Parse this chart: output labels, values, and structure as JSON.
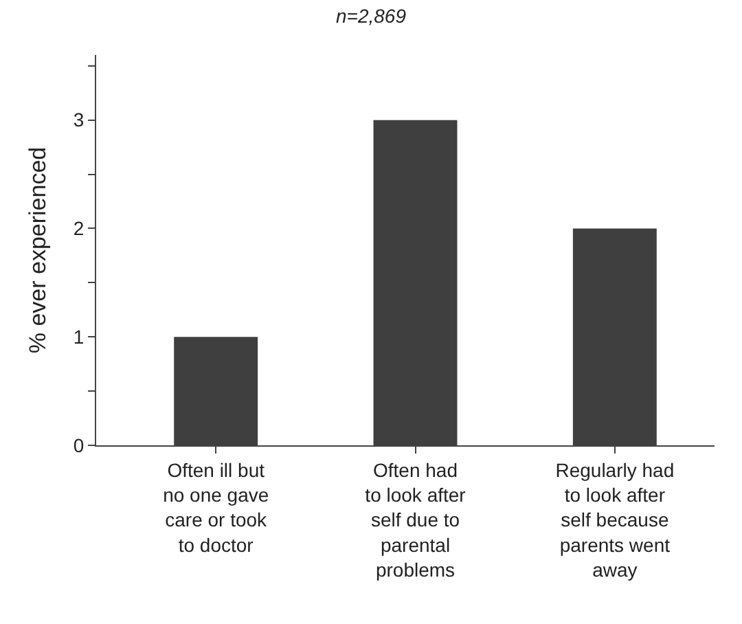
{
  "chart_data": {
    "type": "bar",
    "title": "n=2,869",
    "ylabel": "% ever experienced",
    "categories": [
      "Often ill but\nno one gave\ncare or took\nto doctor",
      "Often had\nto look after\nself due to\nparental\nproblems",
      "Regularly had\nto look after\nself because\nparents went\naway"
    ],
    "values": [
      1,
      3,
      2
    ],
    "color": "#3f3f3f",
    "ylim": [
      0,
      3.6
    ],
    "yticks": [
      0,
      {
        "value": 0.5,
        "label": null
      },
      1,
      {
        "value": 1.5,
        "label": null
      },
      2,
      {
        "value": 2.5,
        "label": null
      },
      3,
      {
        "value": 3.5,
        "label": null
      }
    ]
  }
}
